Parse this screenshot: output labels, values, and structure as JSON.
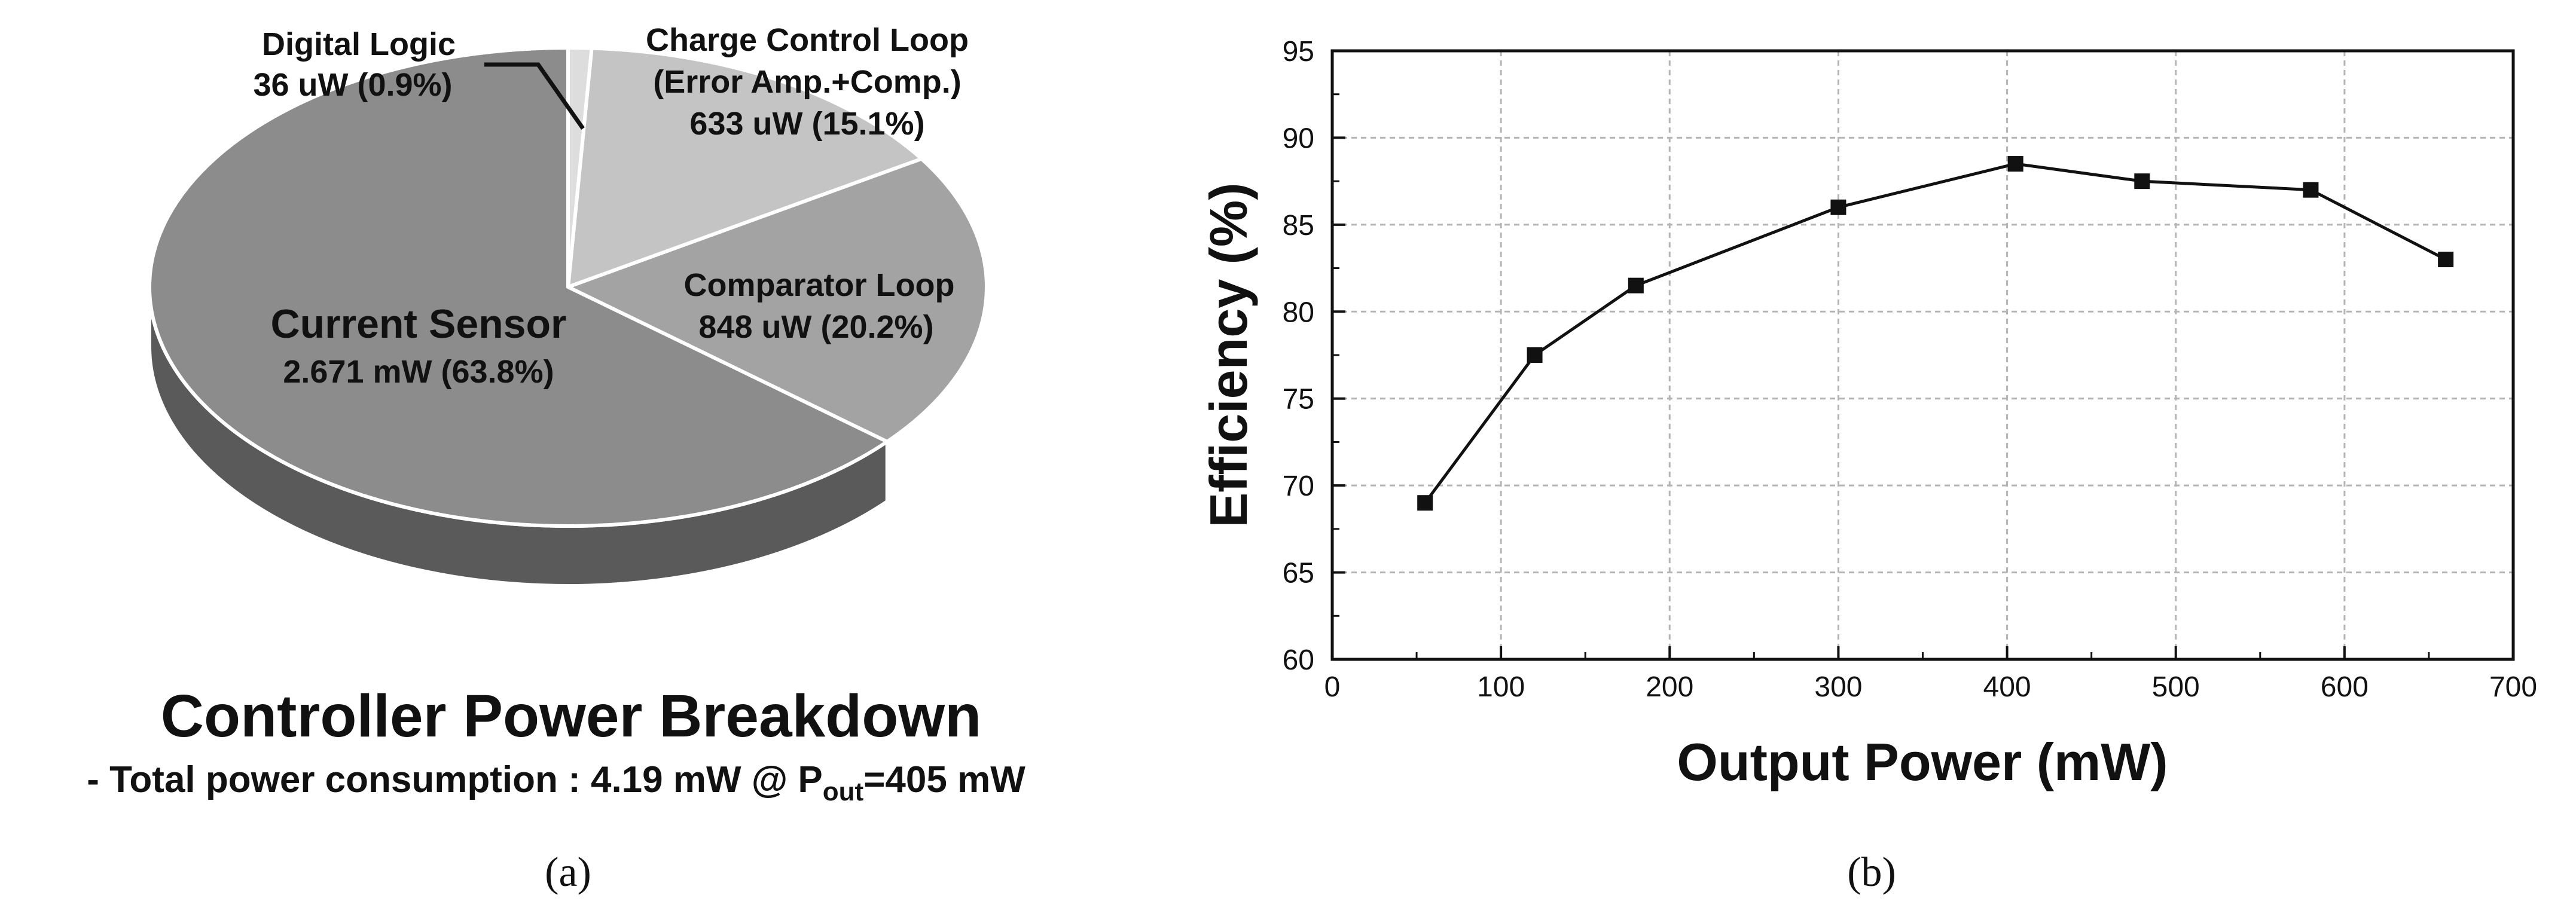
{
  "chart_data": [
    {
      "type": "pie",
      "title": "Controller Power Breakdown",
      "subtitle_prefix": "- Total power consumption : 4.19 mW @ P",
      "subtitle_sub": "out",
      "subtitle_suffix": "=405 mW",
      "caption": "(a)",
      "slices": [
        {
          "name": "Current Sensor",
          "value_text": "2.671 mW (63.8%)",
          "value_uw": 2671,
          "percent": 63.8,
          "color": "#8c8c8c",
          "side_color": "#5a5a5a"
        },
        {
          "name": "Comparator Loop",
          "value_text": "848 uW (20.2%)",
          "value_uw": 848,
          "percent": 20.2,
          "color": "#a3a3a3",
          "side_color": "#4a4a4a"
        },
        {
          "name": "Charge Control Loop",
          "name_line2": "(Error Amp.+Comp.)",
          "value_text": "633 uW (15.1%)",
          "value_uw": 633,
          "percent": 15.1,
          "color": "#c4c4c4",
          "side_color": "#6a6a6a"
        },
        {
          "name": "Digital Logic",
          "value_text": "36 uW (0.9%)",
          "value_uw": 36,
          "percent": 0.9,
          "color": "#dddddd",
          "side_color": "#777777"
        }
      ]
    },
    {
      "type": "line",
      "caption": "(b)",
      "xlabel": "Output Power (mW)",
      "ylabel": "Efficiency (%)",
      "xlim": [
        0,
        700
      ],
      "ylim": [
        60,
        95
      ],
      "xticks": [
        0,
        100,
        200,
        300,
        400,
        500,
        600,
        700
      ],
      "yticks": [
        60,
        65,
        70,
        75,
        80,
        85,
        90,
        95
      ],
      "grid": true,
      "series": [
        {
          "name": "Efficiency",
          "x": [
            55,
            120,
            180,
            300,
            405,
            480,
            580,
            660
          ],
          "y": [
            69.0,
            77.5,
            81.5,
            86.0,
            88.5,
            87.5,
            87.0,
            83.0
          ],
          "color": "#111111"
        }
      ]
    }
  ]
}
